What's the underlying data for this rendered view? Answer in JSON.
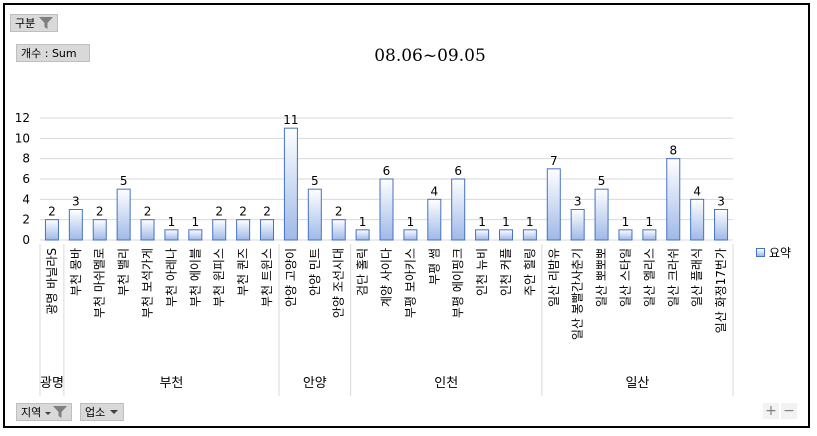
{
  "filters": {
    "category_button": "구분",
    "value_button": "개수 : Sum",
    "axis_field_1": "지역",
    "axis_field_2": "업소"
  },
  "zoom": {
    "plus": "+",
    "minus": "−"
  },
  "colors": {
    "bar_stroke": "#4472c4",
    "bar_top": "#ffffff",
    "bar_bottom": "#9fb9e8",
    "grid": "#d9d9d9"
  },
  "chart_data": {
    "type": "bar",
    "title": "08.06~09.05",
    "xlabel": "",
    "ylabel": "",
    "ylim": [
      0,
      12
    ],
    "yticks": [
      0,
      2,
      4,
      6,
      8,
      10,
      12
    ],
    "grid": true,
    "legend": {
      "position": "right",
      "entries": [
        "요약"
      ]
    },
    "series": [
      {
        "name": "요약",
        "values": [
          2,
          3,
          2,
          5,
          2,
          1,
          1,
          2,
          2,
          2,
          11,
          5,
          2,
          1,
          6,
          1,
          4,
          6,
          1,
          1,
          1,
          7,
          3,
          5,
          1,
          1,
          8,
          4,
          3
        ]
      }
    ],
    "categories": [
      "광명 바닐라S",
      "부천 몽바",
      "부천 마쉬멜로",
      "부천 밸리",
      "부천 보석가게",
      "부천 아레나",
      "부천 에이블",
      "부천 윈피스",
      "부천 퀸즈",
      "부천 트윈스",
      "안양 고양이",
      "안양 민트",
      "안양 조선시대",
      "검단 홀릭",
      "계양 사이다",
      "부평 보아키스",
      "부평 썸",
      "부평 에이핑크",
      "인천 뉴비",
      "인천 커플",
      "주안 힐링",
      "일산 리밤유",
      "일산 봉빨간사춘기",
      "일산 뽀뽀뽀",
      "일산 스타일",
      "일산 엘리스",
      "일산 크라쉬",
      "일산 플래식",
      "일산 화정17번가"
    ],
    "groups": [
      {
        "label": "광명",
        "count": 1
      },
      {
        "label": "부천",
        "count": 9
      },
      {
        "label": "안양",
        "count": 3
      },
      {
        "label": "인천",
        "count": 8
      },
      {
        "label": "일산",
        "count": 8
      }
    ]
  }
}
